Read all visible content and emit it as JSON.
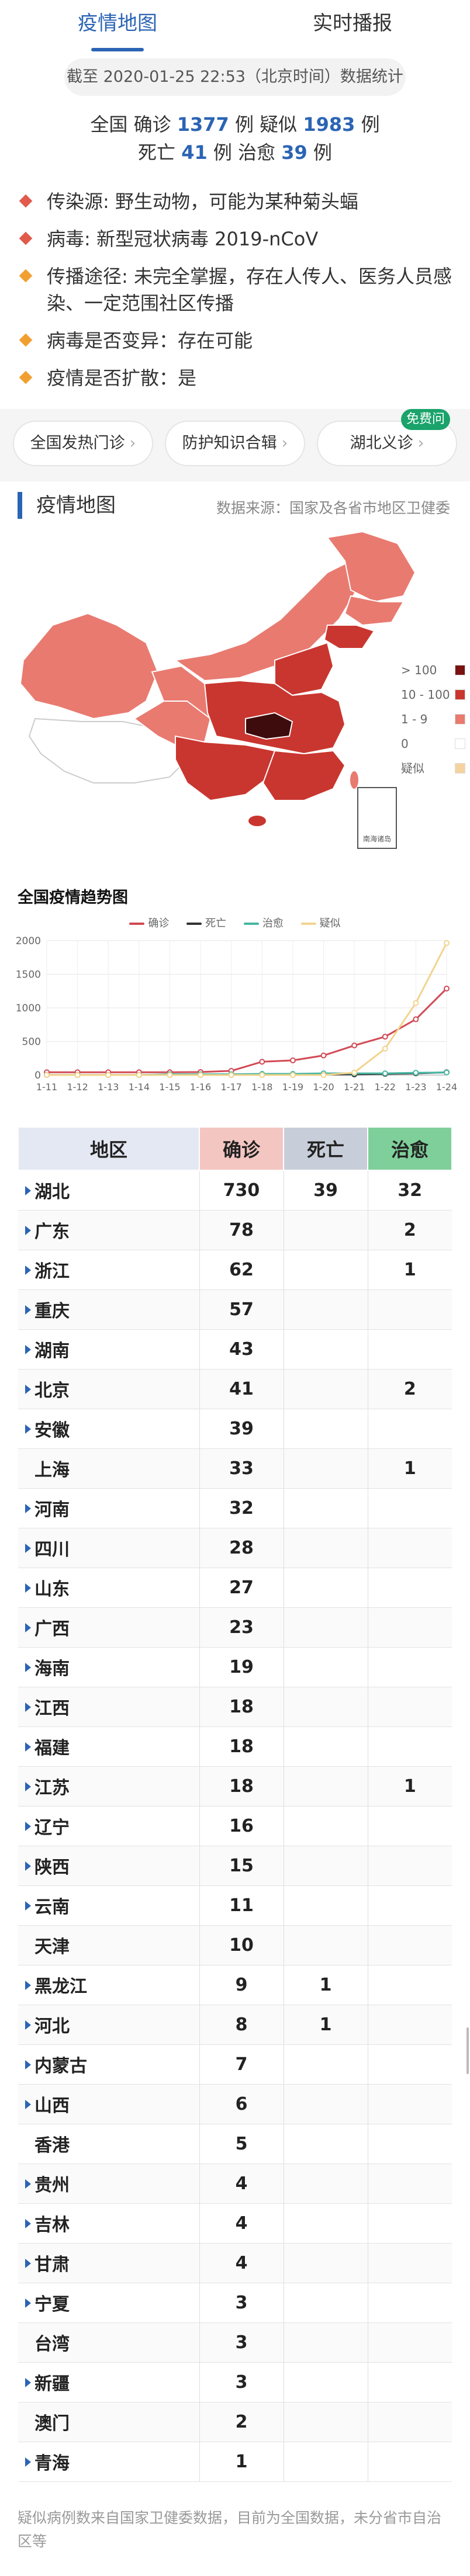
{
  "tabs": [
    {
      "label": "疫情地图",
      "active": true
    },
    {
      "label": "实时播报",
      "active": false
    }
  ],
  "timestamp": "截至 2020-01-25 22:53（北京时间）数据统计",
  "summary": {
    "nation": "全国",
    "confirmed_label": "确诊",
    "confirmed": "1377",
    "unit": "例",
    "suspected_label": "疑似",
    "suspected": "1983",
    "death_label": "死亡",
    "death": "41",
    "cured_label": "治愈",
    "cured": "39"
  },
  "facts": [
    {
      "text": "传染源: 野生动物，可能为某种菊头蝠",
      "color": "#e05b4b"
    },
    {
      "text": "病毒: 新型冠状病毒 2019-nCoV",
      "color": "#e05b4b"
    },
    {
      "text": "传播途径: 未完全掌握，存在人传人、医务人员感染、一定范围社区传播",
      "color": "#f0a030"
    },
    {
      "text": "病毒是否变异：存在可能",
      "color": "#f0a030"
    },
    {
      "text": "疫情是否扩散：是",
      "color": "#f0a030"
    }
  ],
  "pills": [
    {
      "label": "全国发热门诊"
    },
    {
      "label": "防护知识合辑"
    },
    {
      "label": "湖北义诊"
    }
  ],
  "pill_chevron": "›",
  "new_badge": "免费问",
  "map_section": {
    "title": "疫情地图",
    "source": "数据来源：国家及各省市地区卫健委",
    "legend": [
      {
        "label": "> 100",
        "color": "#7a1212"
      },
      {
        "label": "10 - 100",
        "color": "#c9362f"
      },
      {
        "label": "1 - 9",
        "color": "#e97a70"
      },
      {
        "label": "0",
        "color": "#ffffff"
      },
      {
        "label": "疑似",
        "color": "#f5d3a0"
      }
    ],
    "south_sea_label": "南海诸岛"
  },
  "trend": {
    "title": "全国疫情趋势图",
    "series_labels": {
      "confirmed": "确诊",
      "death": "死亡",
      "cured": "治愈",
      "suspected": "疑似"
    },
    "colors": {
      "confirmed": "#d14a55",
      "death": "#333333",
      "cured": "#48b6a4",
      "suspected": "#f2d48e"
    }
  },
  "chart_data": {
    "type": "line",
    "title": "全国疫情趋势图",
    "categories": [
      "1-11",
      "1-12",
      "1-13",
      "1-14",
      "1-15",
      "1-16",
      "1-17",
      "1-18",
      "1-19",
      "1-20",
      "1-21",
      "1-22",
      "1-23",
      "1-24"
    ],
    "series": [
      {
        "name": "确诊",
        "values": [
          41,
          41,
          41,
          41,
          41,
          45,
          62,
          198,
          218,
          291,
          440,
          571,
          830,
          1287
        ]
      },
      {
        "name": "死亡",
        "values": [
          1,
          1,
          1,
          1,
          2,
          2,
          2,
          3,
          3,
          6,
          9,
          17,
          25,
          41
        ]
      },
      {
        "name": "治愈",
        "values": [
          0,
          0,
          0,
          0,
          12,
          12,
          12,
          17,
          17,
          25,
          25,
          25,
          34,
          38
        ]
      },
      {
        "name": "疑似",
        "values": [
          0,
          0,
          0,
          0,
          0,
          0,
          0,
          0,
          0,
          0,
          37,
          393,
          1072,
          1965
        ]
      }
    ],
    "yticks": [
      0,
      500,
      1000,
      1500,
      2000
    ],
    "ylim": [
      0,
      2000
    ]
  },
  "table": {
    "headers": [
      "地区",
      "确诊",
      "死亡",
      "治愈"
    ],
    "header_colors": [
      "#e4e8f3",
      "#f4c6c1",
      "#c8ced9",
      "#7fcf9a"
    ],
    "rows": [
      {
        "region": "湖北",
        "confirmed": "730",
        "death": "39",
        "cured": "32",
        "expand": true
      },
      {
        "region": "广东",
        "confirmed": "78",
        "death": "",
        "cured": "2",
        "expand": true
      },
      {
        "region": "浙江",
        "confirmed": "62",
        "death": "",
        "cured": "1",
        "expand": true
      },
      {
        "region": "重庆",
        "confirmed": "57",
        "death": "",
        "cured": "",
        "expand": true
      },
      {
        "region": "湖南",
        "confirmed": "43",
        "death": "",
        "cured": "",
        "expand": true
      },
      {
        "region": "北京",
        "confirmed": "41",
        "death": "",
        "cured": "2",
        "expand": true
      },
      {
        "region": "安徽",
        "confirmed": "39",
        "death": "",
        "cured": "",
        "expand": true
      },
      {
        "region": "上海",
        "confirmed": "33",
        "death": "",
        "cured": "1",
        "expand": false
      },
      {
        "region": "河南",
        "confirmed": "32",
        "death": "",
        "cured": "",
        "expand": true
      },
      {
        "region": "四川",
        "confirmed": "28",
        "death": "",
        "cured": "",
        "expand": true
      },
      {
        "region": "山东",
        "confirmed": "27",
        "death": "",
        "cured": "",
        "expand": true
      },
      {
        "region": "广西",
        "confirmed": "23",
        "death": "",
        "cured": "",
        "expand": true
      },
      {
        "region": "海南",
        "confirmed": "19",
        "death": "",
        "cured": "",
        "expand": true
      },
      {
        "region": "江西",
        "confirmed": "18",
        "death": "",
        "cured": "",
        "expand": true
      },
      {
        "region": "福建",
        "confirmed": "18",
        "death": "",
        "cured": "",
        "expand": true
      },
      {
        "region": "江苏",
        "confirmed": "18",
        "death": "",
        "cured": "1",
        "expand": true
      },
      {
        "region": "辽宁",
        "confirmed": "16",
        "death": "",
        "cured": "",
        "expand": true
      },
      {
        "region": "陕西",
        "confirmed": "15",
        "death": "",
        "cured": "",
        "expand": true
      },
      {
        "region": "云南",
        "confirmed": "11",
        "death": "",
        "cured": "",
        "expand": true
      },
      {
        "region": "天津",
        "confirmed": "10",
        "death": "",
        "cured": "",
        "expand": false
      },
      {
        "region": "黑龙江",
        "confirmed": "9",
        "death": "1",
        "cured": "",
        "expand": true
      },
      {
        "region": "河北",
        "confirmed": "8",
        "death": "1",
        "cured": "",
        "expand": true
      },
      {
        "region": "内蒙古",
        "confirmed": "7",
        "death": "",
        "cured": "",
        "expand": true
      },
      {
        "region": "山西",
        "confirmed": "6",
        "death": "",
        "cured": "",
        "expand": true
      },
      {
        "region": "香港",
        "confirmed": "5",
        "death": "",
        "cured": "",
        "expand": false
      },
      {
        "region": "贵州",
        "confirmed": "4",
        "death": "",
        "cured": "",
        "expand": true
      },
      {
        "region": "吉林",
        "confirmed": "4",
        "death": "",
        "cured": "",
        "expand": true
      },
      {
        "region": "甘肃",
        "confirmed": "4",
        "death": "",
        "cured": "",
        "expand": true
      },
      {
        "region": "宁夏",
        "confirmed": "3",
        "death": "",
        "cured": "",
        "expand": true
      },
      {
        "region": "台湾",
        "confirmed": "3",
        "death": "",
        "cured": "",
        "expand": false
      },
      {
        "region": "新疆",
        "confirmed": "3",
        "death": "",
        "cured": "",
        "expand": true
      },
      {
        "region": "澳门",
        "confirmed": "2",
        "death": "",
        "cured": "",
        "expand": false
      },
      {
        "region": "青海",
        "confirmed": "1",
        "death": "",
        "cured": "",
        "expand": true
      }
    ]
  },
  "footnote": "疑似病例数来自国家卫健委数据，目前为全国数据，未分省市自治区等"
}
